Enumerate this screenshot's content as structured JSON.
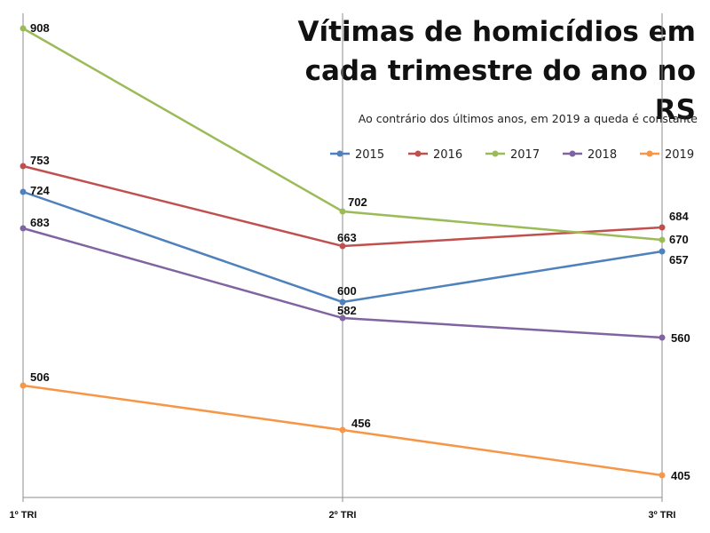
{
  "chart_data": {
    "type": "line",
    "title_line1": "Vítimas de homicídios em",
    "title_line2": "cada trimestre do ano no RS",
    "subtitle": "Ao contrário dos últimos anos, em 2019 a queda é constante",
    "categories": [
      "1º TRI",
      "2º TRI",
      "3º TRI"
    ],
    "xlabel": "",
    "ylabel": "",
    "ylim": [
      380,
      930
    ],
    "grid": "vertical-only",
    "legend": "top-right",
    "series": [
      {
        "name": "2015",
        "color": "#4F81BD",
        "values": [
          724,
          600,
          657
        ]
      },
      {
        "name": "2016",
        "color": "#C0504D",
        "values": [
          753,
          663,
          684
        ]
      },
      {
        "name": "2017",
        "color": "#9BBB59",
        "values": [
          908,
          702,
          670
        ]
      },
      {
        "name": "2018",
        "color": "#8064A2",
        "values": [
          683,
          582,
          560
        ]
      },
      {
        "name": "2019",
        "color": "#F79646",
        "values": [
          506,
          456,
          405
        ]
      }
    ]
  }
}
